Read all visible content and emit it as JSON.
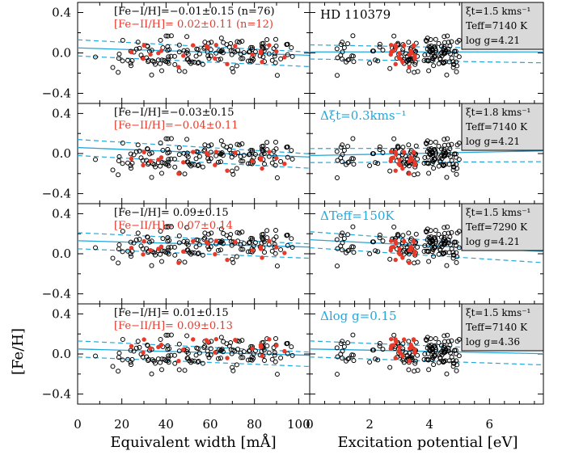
{
  "chart_data": {
    "type": "scatter",
    "title": "",
    "star": "HD 110379",
    "ylabel": "[Fe/H]",
    "xlabel_left": "Equivalent width [mÅ]",
    "xlabel_right": "Excitation potential [eV]",
    "xlim_left": [
      0,
      105
    ],
    "xlim_right": [
      0,
      7.8
    ],
    "ylim": [
      -0.5,
      0.5
    ],
    "xticks_left": [
      "0",
      "20",
      "40",
      "60",
      "80",
      "100"
    ],
    "xticks_right": [
      "0",
      "2",
      "4",
      "6"
    ],
    "yticks": [
      "0.4",
      "0.0",
      "−0.4"
    ],
    "colors": {
      "fe1": "#000000",
      "fe2": "#e8392b",
      "fit": "#22a7dc",
      "box": "#d9d9d9"
    },
    "panels": [
      {
        "fe1_text": "[Fe−I/H]=−0.01±0.15 (n=76)",
        "fe2_text": "[Fe−II/H]= 0.02±0.11 (n=12)",
        "right_label": "HD 110379",
        "params": [
          "ξt=1.5 kms⁻¹",
          "Teff=7140 K",
          "log g=4.21"
        ],
        "fe1_mean": -0.01,
        "fe2_mean": 0.02,
        "ew_fit": {
          "a": 0.05,
          "b": -0.0007,
          "band": 0.08
        },
        "ep_fit": {
          "a": 0.01,
          "b": 0.0,
          "band": 0.07
        }
      },
      {
        "fe1_text": "[Fe−I/H]=−0.03±0.15",
        "fe2_text": "[Fe−II/H]=−0.04±0.11",
        "right_label": "Δξt=0.3kms⁻¹",
        "params": [
          "ξt=1.8 kms⁻¹",
          "Teff=7140 K",
          "log g=4.21"
        ],
        "fe1_mean": -0.03,
        "fe2_mean": -0.04,
        "ew_fit": {
          "a": 0.06,
          "b": -0.0009,
          "band": 0.08
        },
        "ep_fit": {
          "a": -0.02,
          "b": 0.006,
          "band": 0.07
        }
      },
      {
        "fe1_text": "[Fe−I/H]= 0.09±0.15",
        "fe2_text": "[Fe−II/H]= 0.07±0.14",
        "right_label": "ΔTeff=150K",
        "params": [
          "ξt=1.5 kms⁻¹",
          "Teff=7290 K",
          "log g=4.21"
        ],
        "fe1_mean": 0.09,
        "fe2_mean": 0.07,
        "ew_fit": {
          "a": 0.13,
          "b": -0.0006,
          "band": 0.08
        },
        "ep_fit": {
          "a": 0.14,
          "b": -0.015,
          "band": 0.08
        }
      },
      {
        "fe1_text": "[Fe−I/H]= 0.01±0.15",
        "fe2_text": "[Fe−II/H]= 0.09±0.13",
        "right_label": "Δlog g=0.15",
        "params": [
          "ξt=1.5 kms⁻¹",
          "Teff=7140 K",
          "log g=4.36"
        ],
        "fe1_mean": 0.01,
        "fe2_mean": 0.09,
        "ew_fit": {
          "a": 0.05,
          "b": -0.0006,
          "band": 0.08
        },
        "ep_fit": {
          "a": 0.05,
          "b": -0.006,
          "band": 0.08
        }
      }
    ]
  }
}
